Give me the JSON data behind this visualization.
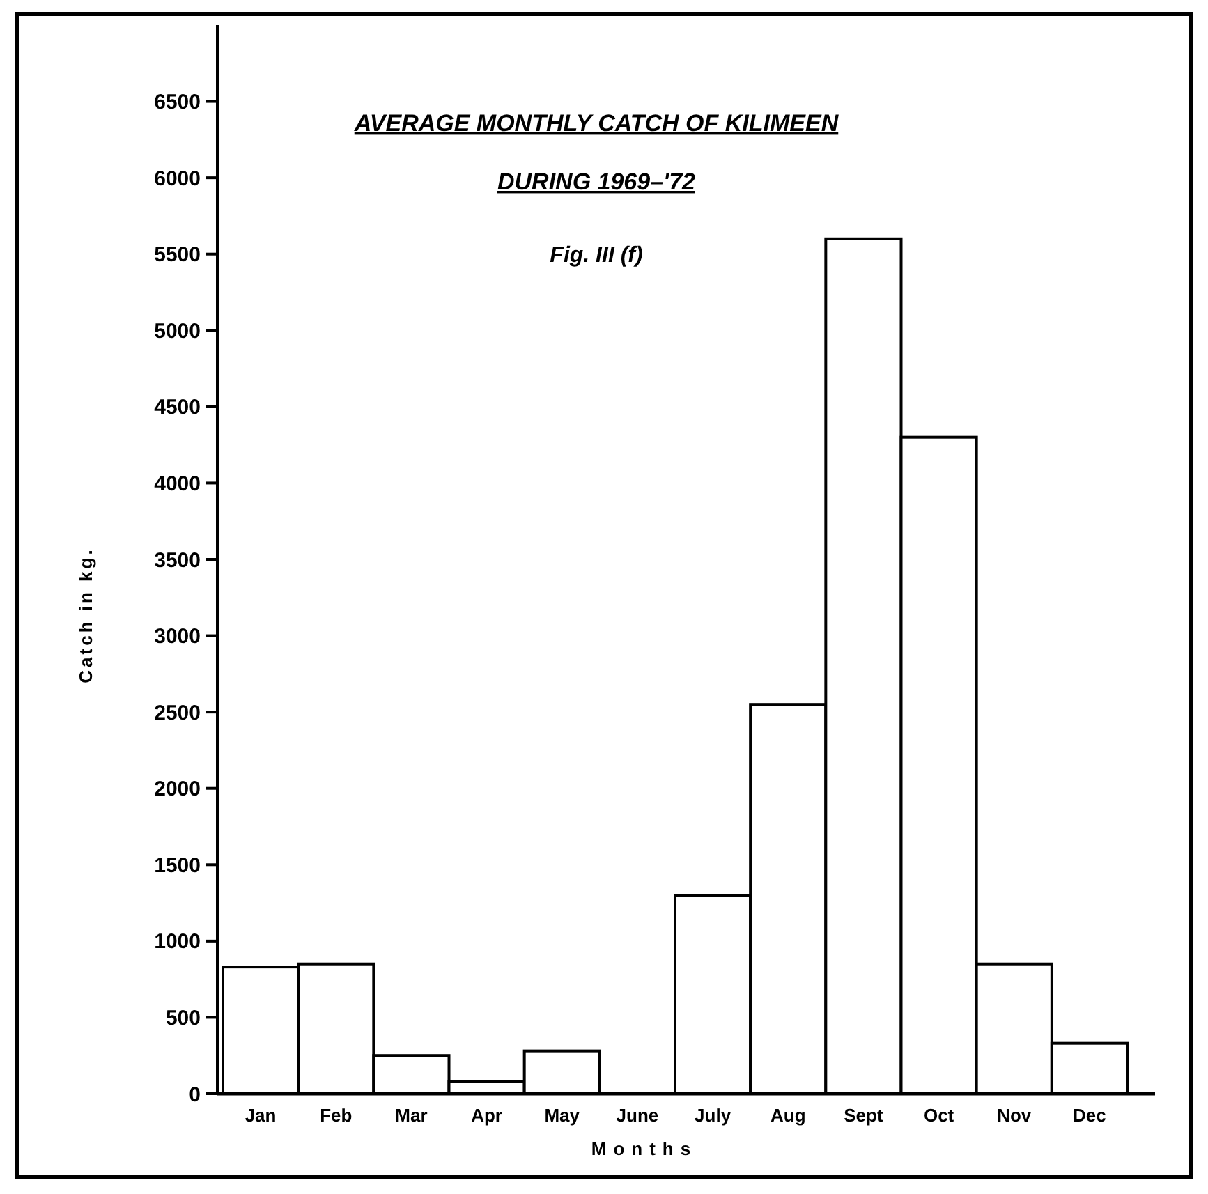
{
  "chart_data": {
    "type": "bar",
    "title": "AVERAGE MONTHLY CATCH OF KILIMEEN",
    "subtitle": "DURING 1969–'72",
    "annotations": [
      "Fig. III (f)"
    ],
    "xlabel": "Months",
    "ylabel": "Catch in kg.",
    "categories": [
      "Jan",
      "Feb",
      "Mar",
      "Apr",
      "May",
      "June",
      "July",
      "Aug",
      "Sept",
      "Oct",
      "Nov",
      "Dec"
    ],
    "values": [
      830,
      850,
      250,
      80,
      280,
      0,
      1300,
      2550,
      5600,
      4300,
      850,
      330
    ],
    "color": "#ffffff",
    "ylim": [
      0,
      7000
    ],
    "yticks": [
      0,
      500,
      1000,
      1500,
      2000,
      2500,
      3000,
      3500,
      4000,
      4500,
      5000,
      5500,
      6000,
      6500
    ],
    "grid": false
  }
}
